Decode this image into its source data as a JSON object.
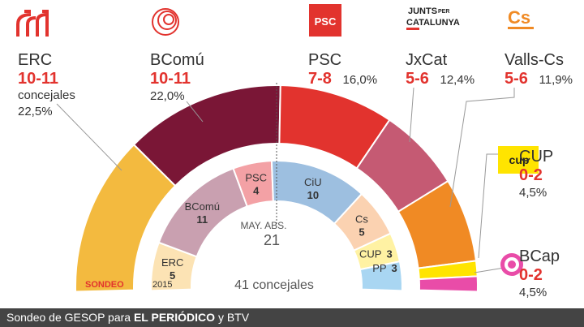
{
  "chart_data": [
    {
      "type": "pie",
      "chart_label": "SONDEO",
      "total_label": "41 concejales",
      "total_seats": 41,
      "parties": [
        {
          "key": "erc",
          "name": "ERC",
          "seats_label": "10-11",
          "seats_mid": 10.5,
          "subtitle": "concejales",
          "pct": "22,5%",
          "color": "#F3BA3F"
        },
        {
          "key": "bcomu",
          "name": "BComú",
          "seats_label": "10-11",
          "seats_mid": 10.5,
          "pct": "22,0%",
          "color": "#7A1636"
        },
        {
          "key": "psc",
          "name": "PSC",
          "seats_label": "7-8",
          "seats_mid": 7.5,
          "pct": "16,0%",
          "color": "#E2332E"
        },
        {
          "key": "jxcat",
          "name": "JxCat",
          "seats_label": "5-6",
          "seats_mid": 5.5,
          "pct": "12,4%",
          "color": "#C55A73"
        },
        {
          "key": "valls",
          "name": "Valls-Cs",
          "seats_label": "5-6",
          "seats_mid": 5.5,
          "pct": "11,9%",
          "color": "#F08A24"
        },
        {
          "key": "cup",
          "name": "CUP",
          "seats_label": "0-2",
          "seats_mid": 1,
          "pct": "4,5%",
          "color": "#FFE400"
        },
        {
          "key": "bcap",
          "name": "BCap",
          "seats_label": "0-2",
          "seats_mid": 1,
          "pct": "4,5%",
          "color": "#E94CA8"
        }
      ]
    },
    {
      "type": "pie",
      "chart_label": "2015",
      "majority_label": "MAY. ABS.",
      "majority_value": "21",
      "parties": [
        {
          "key": "erc15",
          "name": "ERC",
          "seats": 5,
          "color": "#FCE3B4"
        },
        {
          "key": "bcomu15",
          "name": "BComú",
          "seats": 11,
          "color": "#C9A0B0"
        },
        {
          "key": "psc15",
          "name": "PSC",
          "seats": 4,
          "color": "#F3A1A5"
        },
        {
          "key": "ciu15",
          "name": "CiU",
          "seats": 10,
          "color": "#9DBFE0"
        },
        {
          "key": "cs15",
          "name": "Cs",
          "seats": 5,
          "color": "#FBD2B1"
        },
        {
          "key": "cup15",
          "name": "CUP",
          "seats": 3,
          "color": "#FFF2A3"
        },
        {
          "key": "pp15",
          "name": "PP",
          "seats": 3,
          "color": "#A9D6F2"
        }
      ]
    }
  ],
  "logos": {
    "erc": "erc-logo-icon",
    "bcomu": "bcomu-logo-icon",
    "psc": "PSC",
    "jxcat": [
      "JUNTS",
      "PER",
      "CATALUNYA"
    ],
    "cs": "Cs",
    "cup": "cup",
    "bcap": "bcap-logo-icon"
  },
  "footer": {
    "prefix": "Sondeo de GESOP para ",
    "bold": "EL PERIÓDICO",
    "suffix": " y BTV"
  }
}
